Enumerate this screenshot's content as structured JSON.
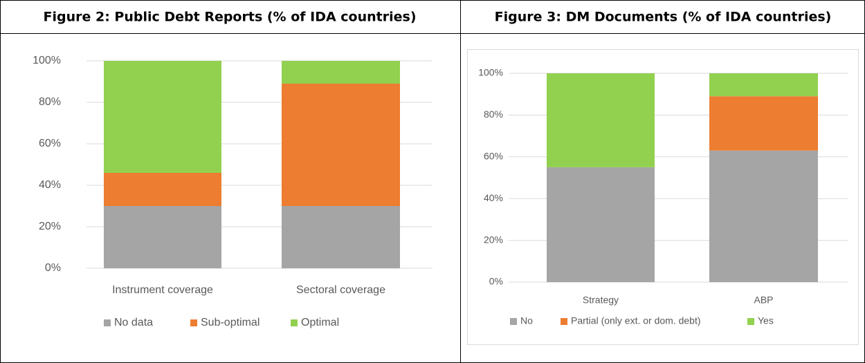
{
  "chart_data": [
    {
      "type": "stacked_bar",
      "title": "Figure 2: Public Debt Reports (% of IDA countries)",
      "categories": [
        "Instrument coverage",
        "Sectoral coverage"
      ],
      "series": [
        {
          "name": "No data",
          "color": "#a5a5a5",
          "values": [
            30,
            30
          ]
        },
        {
          "name": "Sub-optimal",
          "color": "#ed7d31",
          "values": [
            16,
            59
          ]
        },
        {
          "name": "Optimal",
          "color": "#92d050",
          "values": [
            54,
            11
          ]
        }
      ],
      "ylim": [
        0,
        100
      ],
      "yticks": [
        {
          "value": 0,
          "label": "0%"
        },
        {
          "value": 20,
          "label": "20%"
        },
        {
          "value": 40,
          "label": "40%"
        },
        {
          "value": 60,
          "label": "60%"
        },
        {
          "value": 80,
          "label": "80%"
        },
        {
          "value": 100,
          "label": "100%"
        }
      ],
      "grid": true,
      "legend": "bottom"
    },
    {
      "type": "stacked_bar",
      "title": "Figure 3:  DM Documents (% of IDA countries)",
      "categories": [
        "Strategy",
        "ABP"
      ],
      "series": [
        {
          "name": "No",
          "color": "#a5a5a5",
          "values": [
            55,
            63
          ]
        },
        {
          "name": "Partial (only ext. or dom. debt)",
          "color": "#ed7d31",
          "values": [
            0,
            26
          ]
        },
        {
          "name": "Yes",
          "color": "#92d050",
          "values": [
            45,
            11
          ]
        }
      ],
      "ylim": [
        0,
        100
      ],
      "yticks": [
        {
          "value": 0,
          "label": "0%"
        },
        {
          "value": 20,
          "label": "20%"
        },
        {
          "value": 40,
          "label": "40%"
        },
        {
          "value": 60,
          "label": "60%"
        },
        {
          "value": 80,
          "label": "80%"
        },
        {
          "value": 100,
          "label": "100%"
        }
      ],
      "grid": true,
      "legend": "bottom"
    }
  ]
}
